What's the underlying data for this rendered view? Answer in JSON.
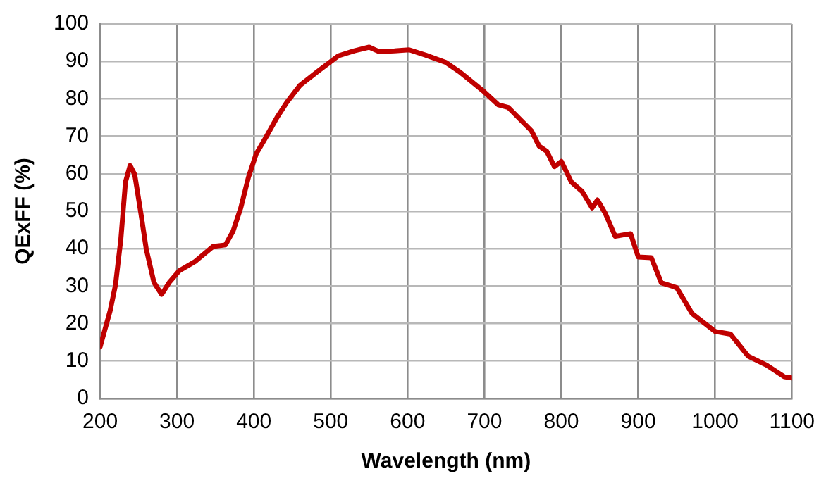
{
  "chart_data": {
    "type": "line",
    "xlabel": "Wavelength (nm)",
    "ylabel": "QExFF (%)",
    "x": [
      200,
      213,
      220,
      227,
      233,
      239,
      245,
      253,
      260,
      270,
      280,
      290,
      303,
      323,
      347,
      363,
      373,
      383,
      393,
      403,
      417,
      430,
      443,
      460,
      483,
      510,
      530,
      550,
      563,
      583,
      602,
      623,
      650,
      667,
      675,
      700,
      718,
      731,
      761,
      771,
      781,
      791,
      800,
      813,
      827,
      840,
      847,
      857,
      870,
      890,
      900,
      917,
      930,
      950,
      970,
      1000,
      1020,
      1043,
      1067,
      1090,
      1100
    ],
    "series": [
      {
        "color": "#c00000",
        "values": [
          13.8,
          23.4,
          30.3,
          42.6,
          57.8,
          62.2,
          59.8,
          49.5,
          39.9,
          31,
          27.8,
          31,
          34.1,
          36.5,
          40.6,
          41,
          44.7,
          50.9,
          59.1,
          65.3,
          70.2,
          75,
          79.1,
          83.6,
          87.3,
          91.5,
          92.8,
          93.8,
          92.6,
          92.8,
          93.1,
          91.7,
          89.7,
          87.3,
          86,
          81.8,
          78.4,
          77.7,
          71.5,
          67.4,
          66,
          61.9,
          63.3,
          57.8,
          55.3,
          50.9,
          53,
          49.5,
          43.3,
          44,
          37.8,
          37.6,
          30.9,
          29.6,
          22.7,
          17.9,
          17.2,
          11.3,
          8.9,
          5.8,
          5.5
        ]
      }
    ],
    "xlim": [
      200,
      1100
    ],
    "xticks": [
      200,
      300,
      400,
      500,
      600,
      700,
      800,
      900,
      1000,
      1100
    ],
    "ylim": [
      0,
      100
    ],
    "yticks": [
      0,
      10,
      20,
      30,
      40,
      50,
      60,
      70,
      80,
      90,
      100
    ],
    "grid": true,
    "legend": false,
    "marker": "none",
    "line_style": "solid"
  }
}
